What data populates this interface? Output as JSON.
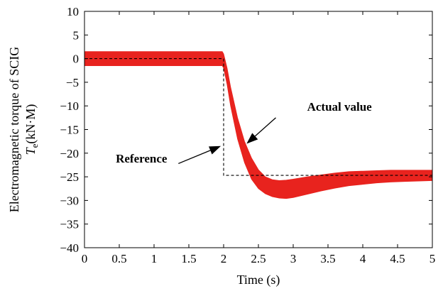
{
  "chart_data": {
    "type": "line",
    "title": "",
    "xlabel": "Time (s)",
    "ylabel_line1": "Electromagnetic torque of SCIG",
    "ylabel_line2_main": "T",
    "ylabel_line2_sub": "e",
    "ylabel_line2_unit": "(kN·M)",
    "xlim": [
      0,
      5
    ],
    "ylim": [
      -40,
      10
    ],
    "x_ticks": [
      0,
      0.5,
      1,
      1.5,
      2,
      2.5,
      3,
      3.5,
      4,
      4.5,
      5
    ],
    "x_tick_labels": [
      "0",
      "0.5",
      "1",
      "1.5",
      "2",
      "2.5",
      "3",
      "3.5",
      "4",
      "4.5",
      "5"
    ],
    "y_ticks": [
      10,
      5,
      0,
      -5,
      -10,
      -15,
      -20,
      -25,
      -30,
      -35,
      -40
    ],
    "y_tick_labels": [
      "10",
      "5",
      "0",
      "−5",
      "−10",
      "−15",
      "−20",
      "−25",
      "−30",
      "−35",
      "−40"
    ],
    "grid": false,
    "series": [
      {
        "name": "Actual value",
        "color": "#e8231e",
        "style": "solid-band",
        "x": [
          0,
          1.0,
          1.98,
          2.0,
          2.05,
          2.1,
          2.2,
          2.3,
          2.4,
          2.5,
          2.6,
          2.7,
          2.8,
          2.9,
          3.0,
          3.2,
          3.4,
          3.6,
          3.8,
          4.0,
          4.2,
          4.4,
          4.6,
          4.8,
          5.0
        ],
        "upper": [
          1.5,
          1.5,
          1.5,
          1.0,
          -2.0,
          -6.0,
          -12.5,
          -17.5,
          -21.0,
          -23.5,
          -25.0,
          -25.6,
          -25.8,
          -25.7,
          -25.5,
          -25.0,
          -24.6,
          -24.2,
          -23.9,
          -23.8,
          -23.7,
          -23.6,
          -23.6,
          -23.6,
          -23.6
        ],
        "lower": [
          -1.5,
          -1.5,
          -1.5,
          -2.0,
          -5.5,
          -10.0,
          -17.0,
          -22.0,
          -25.5,
          -27.5,
          -28.6,
          -29.2,
          -29.5,
          -29.6,
          -29.4,
          -28.7,
          -28.0,
          -27.4,
          -26.9,
          -26.6,
          -26.3,
          -26.1,
          -26.0,
          -25.9,
          -25.8
        ]
      },
      {
        "name": "Reference",
        "color": "#000000",
        "style": "dashed",
        "x": [
          0,
          2.0,
          2.0,
          5.0
        ],
        "y": [
          0,
          0,
          -24.7,
          -24.7
        ]
      }
    ],
    "annotations": [
      {
        "label": "Actual value",
        "text_at": [
          3.2,
          -11.0
        ],
        "arrow_from": [
          2.75,
          -12.5
        ],
        "arrow_to": [
          2.33,
          -18.0
        ]
      },
      {
        "label": "Reference",
        "text_at": [
          0.45,
          -22.0
        ],
        "arrow_from": [
          1.35,
          -22.2
        ],
        "arrow_to": [
          1.96,
          -18.5
        ]
      }
    ]
  }
}
